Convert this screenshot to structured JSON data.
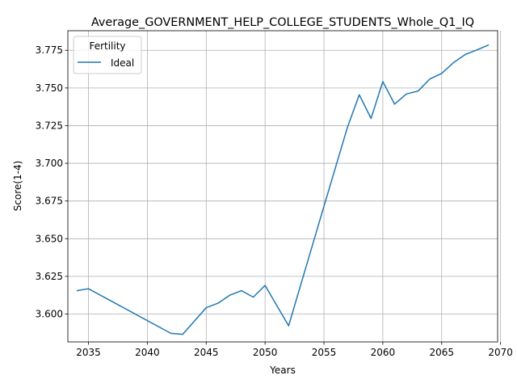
{
  "chart_data": {
    "type": "line",
    "title": "Average_GOVERNMENT_HELP_COLLEGE_STUDENTS_Whole_Q1_IQ",
    "xlabel": "Years",
    "ylabel": "Score(1-4)",
    "xlim": [
      2033.25,
      2069.75
    ],
    "ylim": [
      3.5815,
      3.788
    ],
    "xticks": [
      2035,
      2040,
      2045,
      2050,
      2055,
      2060,
      2065,
      2070
    ],
    "yticks": [
      3.6,
      3.625,
      3.65,
      3.675,
      3.7,
      3.725,
      3.75,
      3.775
    ],
    "grid": true,
    "legend": {
      "title": "Fertility",
      "position": "top-left"
    },
    "series": [
      {
        "name": "Ideal",
        "color": "#1f77b4",
        "x": [
          2034,
          2035,
          2042,
          2043,
          2045,
          2046,
          2047,
          2048,
          2049,
          2050,
          2052,
          2055,
          2057,
          2058,
          2059,
          2060,
          2061,
          2062,
          2063,
          2064,
          2065,
          2066,
          2067,
          2068,
          2069
        ],
        "y": [
          3.6155,
          3.6168,
          3.5872,
          3.5865,
          3.6042,
          3.6072,
          3.6125,
          3.6155,
          3.6112,
          3.619,
          3.5922,
          3.6715,
          3.724,
          3.7455,
          3.7298,
          3.7543,
          3.7393,
          3.746,
          3.748,
          3.756,
          3.7597,
          3.7668,
          3.7722,
          3.7753,
          3.7786
        ]
      }
    ]
  }
}
